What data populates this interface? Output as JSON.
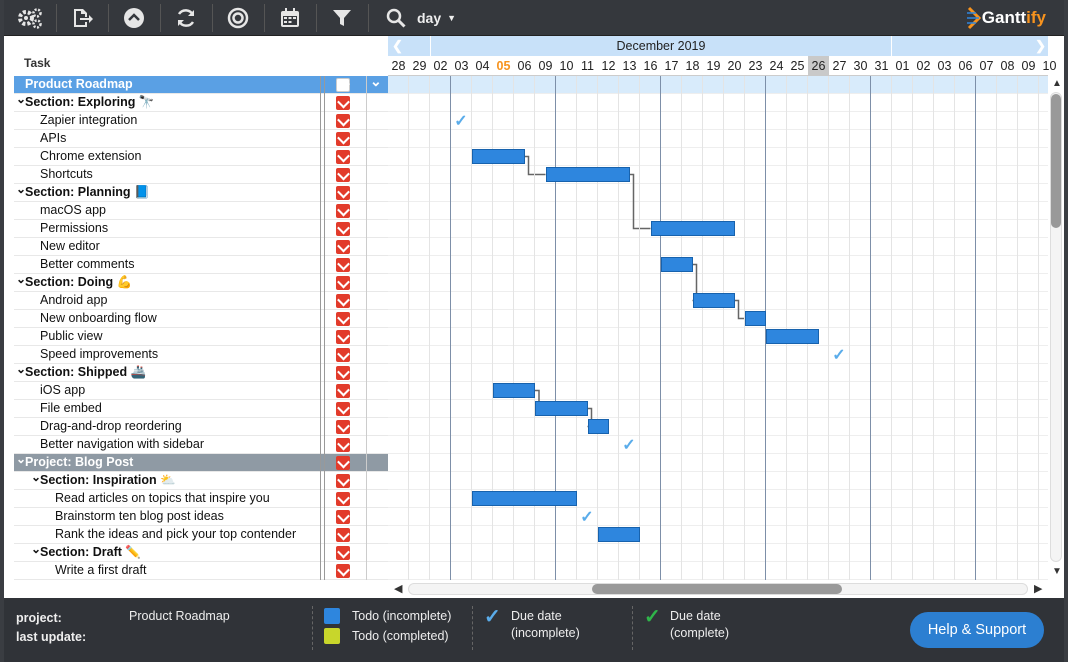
{
  "toolbar": {
    "view_mode": "day",
    "logo_text": "Gantt",
    "logo_accent": "ify"
  },
  "task_header": "Task",
  "tasks": [
    {
      "label": "Product Roadmap",
      "type": "project",
      "indent": 0
    },
    {
      "label": "Section: Exploring 🔭",
      "type": "section",
      "indent": 0
    },
    {
      "label": "Zapier integration",
      "type": "task",
      "indent": 1
    },
    {
      "label": "APIs",
      "type": "task",
      "indent": 1
    },
    {
      "label": "Chrome extension",
      "type": "task",
      "indent": 1
    },
    {
      "label": "Shortcuts",
      "type": "task",
      "indent": 1
    },
    {
      "label": "Section: Planning 📘",
      "type": "section",
      "indent": 0
    },
    {
      "label": "macOS app",
      "type": "task",
      "indent": 1
    },
    {
      "label": "Permissions",
      "type": "task",
      "indent": 1
    },
    {
      "label": "New editor",
      "type": "task",
      "indent": 1
    },
    {
      "label": "Better comments",
      "type": "task",
      "indent": 1
    },
    {
      "label": "Section: Doing 💪",
      "type": "section",
      "indent": 0
    },
    {
      "label": "Android app",
      "type": "task",
      "indent": 1
    },
    {
      "label": "New onboarding flow",
      "type": "task",
      "indent": 1
    },
    {
      "label": "Public view",
      "type": "task",
      "indent": 1
    },
    {
      "label": "Speed improvements",
      "type": "task",
      "indent": 1
    },
    {
      "label": "Section: Shipped 🚢",
      "type": "section",
      "indent": 0
    },
    {
      "label": "iOS app",
      "type": "task",
      "indent": 1
    },
    {
      "label": "File embed",
      "type": "task",
      "indent": 1
    },
    {
      "label": "Drag-and-drop reordering",
      "type": "task",
      "indent": 1
    },
    {
      "label": "Better navigation with sidebar",
      "type": "task",
      "indent": 1
    },
    {
      "label": "Project: Blog Post",
      "type": "project2",
      "indent": 0
    },
    {
      "label": "Section: Inspiration ⛅",
      "type": "section",
      "indent": 1
    },
    {
      "label": "Read articles on topics that inspire you",
      "type": "task",
      "indent": 2
    },
    {
      "label": "Brainstorm ten blog post ideas",
      "type": "task",
      "indent": 2
    },
    {
      "label": "Rank the ideas and pick your top contender",
      "type": "task",
      "indent": 2
    },
    {
      "label": "Section: Draft ✏️",
      "type": "section",
      "indent": 1
    },
    {
      "label": "Write a first draft",
      "type": "task",
      "indent": 2
    }
  ],
  "timeline": {
    "month_label": "December 2019",
    "days": [
      "28",
      "29",
      "02",
      "03",
      "04",
      "05",
      "06",
      "09",
      "10",
      "11",
      "12",
      "13",
      "16",
      "17",
      "18",
      "19",
      "20",
      "23",
      "24",
      "25",
      "26",
      "27",
      "30",
      "31",
      "01",
      "02",
      "03",
      "06",
      "07",
      "08",
      "09",
      "10"
    ],
    "today_index": 5,
    "selected_index": 20,
    "week_start_indices": [
      2,
      7,
      12,
      17,
      22,
      27
    ]
  },
  "bars": [
    {
      "row": 4,
      "start": 4,
      "end": 6.5
    },
    {
      "row": 5,
      "start": 7.5,
      "end": 11.5
    },
    {
      "row": 8,
      "start": 12.5,
      "end": 16.5
    },
    {
      "row": 10,
      "start": 13,
      "end": 14.5
    },
    {
      "row": 12,
      "start": 14.5,
      "end": 16.5
    },
    {
      "row": 13,
      "start": 17,
      "end": 18
    },
    {
      "row": 14,
      "start": 18,
      "end": 20.5
    },
    {
      "row": 17,
      "start": 5,
      "end": 7
    },
    {
      "row": 18,
      "start": 7,
      "end": 9.5
    },
    {
      "row": 19,
      "start": 9.5,
      "end": 10.5
    },
    {
      "row": 23,
      "start": 4,
      "end": 9
    },
    {
      "row": 25,
      "start": 10,
      "end": 12
    }
  ],
  "deps": [
    [
      0,
      1
    ],
    [
      1,
      2
    ],
    [
      3,
      4
    ],
    [
      4,
      5
    ],
    [
      7,
      8
    ],
    [
      8,
      9
    ]
  ],
  "due_checks": [
    {
      "row": 2,
      "col": 3
    },
    {
      "row": 15,
      "col": 21
    },
    {
      "row": 20,
      "col": 11
    },
    {
      "row": 24,
      "col": 9
    }
  ],
  "footer": {
    "project_label": "project:",
    "project_value": "Product Roadmap",
    "update_label": "last update:",
    "legend_todo_incomplete": "Todo (incomplete)",
    "legend_todo_complete": "Todo (completed)",
    "legend_due_incomplete_1": "Due date",
    "legend_due_incomplete_2": "(incomplete)",
    "legend_due_complete_1": "Due date",
    "legend_due_complete_2": "(complete)",
    "help_label": "Help & Support"
  },
  "colors": {
    "bar": "#2e86de",
    "todo_incomplete": "#2e86de",
    "todo_complete": "#c8d62b",
    "due_incomplete": "#5aacea",
    "due_complete": "#2fb54a"
  }
}
